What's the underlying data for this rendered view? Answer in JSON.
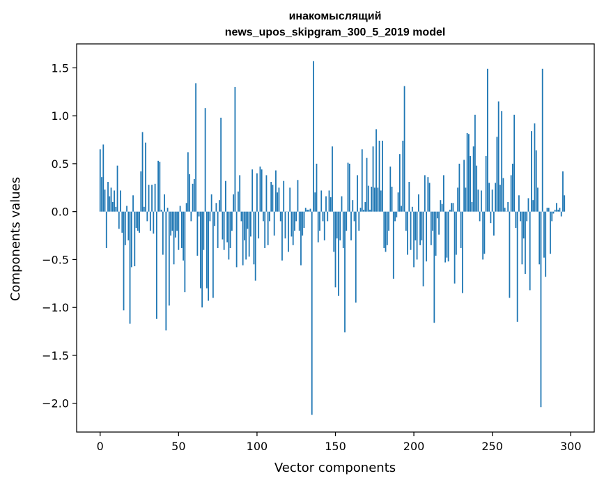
{
  "chart_data": {
    "type": "bar",
    "title_line1": "инакомыслящий",
    "title_line2": "news_upos_skipgram_300_5_2019 model",
    "xlabel": "Vector components",
    "ylabel": "Components values",
    "xlim": [
      -15,
      315
    ],
    "ylim": [
      -2.3,
      1.75
    ],
    "xticks": [
      0,
      50,
      100,
      150,
      200,
      250,
      300
    ],
    "xtick_labels": [
      "0",
      "50",
      "100",
      "150",
      "200",
      "250",
      "300"
    ],
    "yticks": [
      -2.0,
      -1.5,
      -1.0,
      -0.5,
      0.0,
      0.5,
      1.0,
      1.5
    ],
    "ytick_labels": [
      "−2.0",
      "−1.5",
      "−1.0",
      "−0.5",
      "0.0",
      "0.5",
      "1.0",
      "1.5"
    ],
    "bar_color": "#1f77b4",
    "grid": false,
    "values": [
      0.65,
      0.36,
      0.7,
      0.23,
      -0.38,
      0.31,
      0.16,
      0.25,
      0.1,
      0.22,
      0.05,
      0.48,
      -0.18,
      0.22,
      -0.22,
      -1.03,
      -0.35,
      0.06,
      -0.3,
      -1.17,
      -0.58,
      0.17,
      -0.57,
      -0.17,
      -0.2,
      -0.22,
      0.42,
      0.83,
      0.05,
      0.72,
      -0.1,
      0.28,
      -0.2,
      0.28,
      -0.23,
      0.29,
      -1.12,
      0.53,
      0.52,
      0.02,
      -0.45,
      0.18,
      -1.24,
      0.04,
      -0.98,
      -0.25,
      -0.2,
      -0.55,
      -0.27,
      -0.2,
      -0.4,
      0.06,
      -0.38,
      -0.51,
      -0.84,
      0.09,
      0.62,
      0.39,
      -0.1,
      0.29,
      0.34,
      1.34,
      -0.46,
      -0.05,
      -0.8,
      -1.0,
      -0.4,
      1.08,
      -0.8,
      -0.93,
      -0.1,
      0.18,
      -0.9,
      -0.15,
      0.09,
      -0.38,
      0.12,
      0.98,
      -0.29,
      -0.4,
      0.32,
      -0.32,
      -0.5,
      -0.38,
      -0.2,
      0.18,
      1.3,
      -0.58,
      0.21,
      0.38,
      -0.1,
      -0.56,
      -0.3,
      -0.5,
      -0.18,
      -0.47,
      -0.26,
      0.44,
      -0.55,
      -0.72,
      0.4,
      -0.28,
      0.47,
      0.44,
      -0.1,
      -0.38,
      0.38,
      -0.35,
      -0.1,
      0.31,
      0.28,
      -0.25,
      0.43,
      0.2,
      0.25,
      -0.1,
      -0.51,
      0.32,
      -0.28,
      0.0,
      -0.42,
      0.25,
      -0.26,
      -0.35,
      -0.2,
      -0.1,
      0.33,
      -0.2,
      -0.56,
      -0.25,
      -0.17,
      0.04,
      0.02,
      0.02,
      0.03,
      -2.12,
      1.57,
      0.2,
      0.5,
      -0.32,
      -0.2,
      0.22,
      -0.1,
      -0.3,
      0.16,
      -0.1,
      0.22,
      0.15,
      0.68,
      -0.42,
      -0.79,
      -0.28,
      -0.88,
      -0.3,
      0.16,
      -0.38,
      -1.26,
      -0.2,
      0.51,
      0.5,
      -0.3,
      0.12,
      -0.1,
      -0.95,
      0.38,
      -0.2,
      0.04,
      0.65,
      0.02,
      0.1,
      0.56,
      0.27,
      0.02,
      0.26,
      0.68,
      0.25,
      0.86,
      0.25,
      0.74,
      0.22,
      0.74,
      -0.38,
      -0.42,
      -0.35,
      -0.2,
      0.47,
      0.26,
      -0.7,
      -0.1,
      -0.06,
      0.2,
      0.6,
      0.06,
      0.74,
      1.31,
      -0.2,
      -0.45,
      0.31,
      -0.4,
      0.05,
      -0.58,
      -0.3,
      -0.5,
      0.18,
      -0.35,
      -0.3,
      -0.78,
      0.38,
      -0.52,
      0.36,
      0.3,
      -0.35,
      -0.2,
      -1.16,
      -0.46,
      -0.07,
      -0.24,
      0.12,
      0.08,
      0.38,
      -0.53,
      -0.48,
      -0.52,
      0.02,
      0.09,
      0.09,
      -0.75,
      -0.45,
      0.25,
      0.5,
      -0.38,
      -0.85,
      0.54,
      0.25,
      0.82,
      0.81,
      0.58,
      0.1,
      0.68,
      1.01,
      0.48,
      0.23,
      -0.1,
      0.22,
      -0.5,
      -0.44,
      0.58,
      1.49,
      0.3,
      -0.12,
      0.23,
      -0.25,
      0.3,
      0.78,
      1.15,
      0.28,
      1.05,
      0.35,
      0.04,
      0.0,
      0.1,
      -0.9,
      0.38,
      0.5,
      1.01,
      -0.17,
      -1.15,
      0.17,
      -0.1,
      -0.55,
      -0.28,
      -0.65,
      -0.1,
      0.14,
      -0.82,
      0.84,
      0.12,
      0.92,
      0.64,
      0.25,
      -0.55,
      -2.04,
      1.49,
      -0.48,
      -0.68,
      0.04,
      0.04,
      -0.44,
      -0.1,
      -0.02,
      0.02,
      0.09,
      0.02,
      0.04,
      -0.05,
      0.42,
      0.17
    ]
  }
}
